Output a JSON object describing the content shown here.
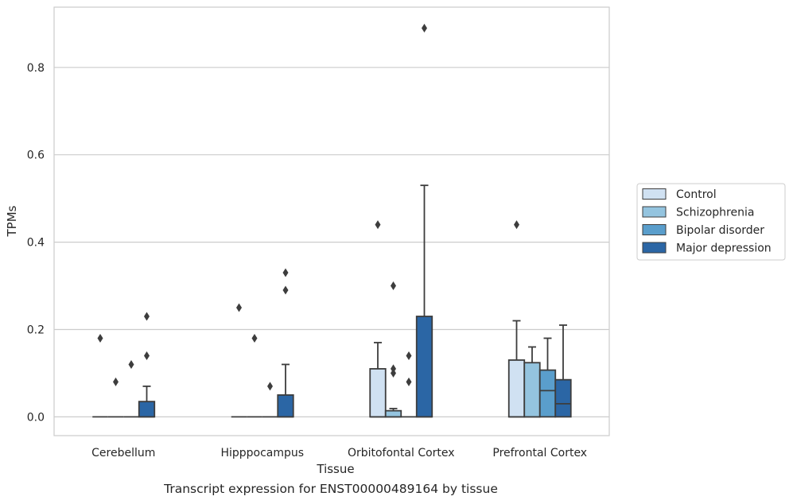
{
  "chart_data": {
    "type": "box",
    "title": "",
    "xlabel": "Tissue",
    "ylabel": "TPMs",
    "caption": "Transcript expression for ENST00000489164 by tissue",
    "ylim": [
      -0.043,
      0.938
    ],
    "yticks": [
      0.0,
      0.2,
      0.4,
      0.6,
      0.8
    ],
    "ytick_labels": [
      "0.0",
      "0.2",
      "0.4",
      "0.6",
      "0.8"
    ],
    "grid": "horizontal",
    "legend_position": "right",
    "categories": [
      "Cerebellum",
      "Hipppocampus",
      "Orbitofontal Cortex",
      "Prefrontal Cortex"
    ],
    "series": [
      {
        "name": "Control",
        "color": "#d0e1f2",
        "boxes": [
          {
            "q1": 0,
            "median": 0,
            "q3": 0,
            "whisker_low": 0,
            "whisker_high": 0,
            "outliers": [
              0.18
            ]
          },
          {
            "q1": 0,
            "median": 0,
            "q3": 0,
            "whisker_low": 0,
            "whisker_high": 0,
            "outliers": [
              0.25
            ]
          },
          {
            "q1": 0,
            "median": 0,
            "q3": 0.11,
            "whisker_low": 0,
            "whisker_high": 0.17,
            "outliers": [
              0.44
            ]
          },
          {
            "q1": 0,
            "median": 0,
            "q3": 0.13,
            "whisker_low": 0,
            "whisker_high": 0.22,
            "outliers": [
              0.44
            ]
          }
        ]
      },
      {
        "name": "Schizophrenia",
        "color": "#94c4df",
        "boxes": [
          {
            "q1": 0,
            "median": 0,
            "q3": 0,
            "whisker_low": 0,
            "whisker_high": 0,
            "outliers": [
              0.08
            ]
          },
          {
            "q1": 0,
            "median": 0,
            "q3": 0,
            "whisker_low": 0,
            "whisker_high": 0,
            "outliers": [
              0.18
            ]
          },
          {
            "q1": 0,
            "median": 0,
            "q3": 0.014,
            "whisker_low": 0,
            "whisker_high": 0.019,
            "outliers": [
              0.11,
              0.1,
              0.3
            ]
          },
          {
            "q1": 0,
            "median": 0,
            "q3": 0.124,
            "whisker_low": 0,
            "whisker_high": 0.16,
            "outliers": []
          }
        ]
      },
      {
        "name": "Bipolar disorder",
        "color": "#5a9ecc",
        "boxes": [
          {
            "q1": 0,
            "median": 0,
            "q3": 0,
            "whisker_low": 0,
            "whisker_high": 0,
            "outliers": [
              0.12
            ]
          },
          {
            "q1": 0,
            "median": 0,
            "q3": 0,
            "whisker_low": 0,
            "whisker_high": 0,
            "outliers": [
              0.07
            ]
          },
          {
            "q1": 0,
            "median": 0,
            "q3": 0,
            "whisker_low": 0,
            "whisker_high": 0,
            "outliers": [
              0.08,
              0.14
            ]
          },
          {
            "q1": 0,
            "median": 0.06,
            "q3": 0.107,
            "whisker_low": 0,
            "whisker_high": 0.18,
            "outliers": []
          }
        ]
      },
      {
        "name": "Major depression",
        "color": "#2b66a5",
        "boxes": [
          {
            "q1": 0,
            "median": 0,
            "q3": 0.035,
            "whisker_low": 0,
            "whisker_high": 0.07,
            "outliers": [
              0.14,
              0.23
            ]
          },
          {
            "q1": 0,
            "median": 0,
            "q3": 0.05,
            "whisker_low": 0,
            "whisker_high": 0.12,
            "outliers": [
              0.29,
              0.33
            ]
          },
          {
            "q1": 0,
            "median": 0,
            "q3": 0.23,
            "whisker_low": 0,
            "whisker_high": 0.53,
            "outliers": [
              0.89
            ]
          },
          {
            "q1": 0,
            "median": 0.03,
            "q3": 0.085,
            "whisker_low": 0,
            "whisker_high": 0.21,
            "outliers": []
          }
        ]
      }
    ]
  }
}
